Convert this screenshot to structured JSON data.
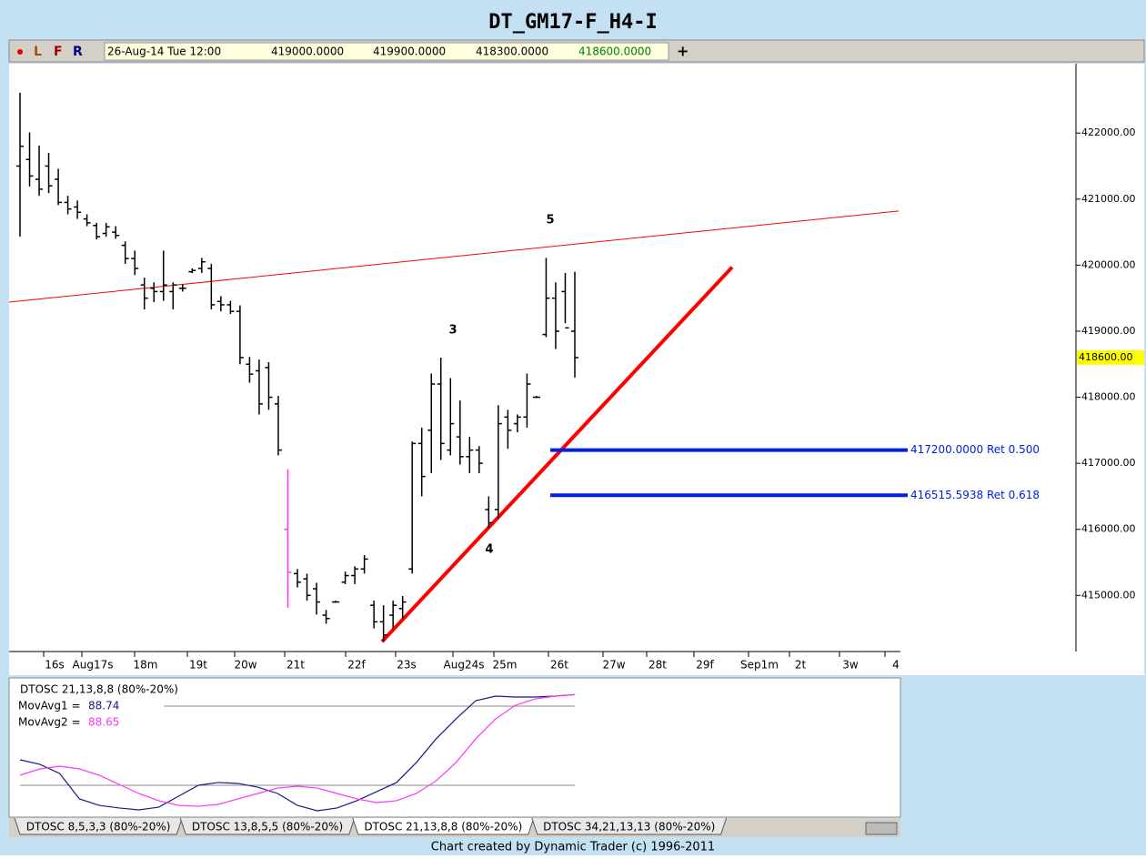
{
  "chart_data": {
    "type": "ohlc",
    "title": "DT_GM17-F_H4-I",
    "toolbar": {
      "flags": [
        "L",
        "F",
        "R"
      ],
      "date": "26-Aug-14 Tue 12:00",
      "open": "419000.0000",
      "high": "419900.0000",
      "low": "418300.0000",
      "close": "418600.0000",
      "plus": "+"
    },
    "categories": [
      "16s",
      "Aug17s",
      "18m",
      "19t",
      "20w",
      "21t",
      "22f",
      "23s",
      "Aug24s",
      "25m",
      "26t",
      "27w",
      "28t",
      "29f",
      "Sep1m",
      "2t",
      "3w",
      "4"
    ],
    "ylim": [
      414150,
      423050
    ],
    "yticks": [
      {
        "value": 415000,
        "label": "415000.00"
      },
      {
        "value": 416000,
        "label": "416000.00"
      },
      {
        "value": 417000,
        "label": "417000.00"
      },
      {
        "value": 418000,
        "label": "418000.00"
      },
      {
        "value": 419000,
        "label": "419000.00"
      },
      {
        "value": 420000,
        "label": "420000.00"
      },
      {
        "value": 421000,
        "label": "421000.00"
      },
      {
        "value": 422000,
        "label": "422000.00"
      }
    ],
    "last_price": {
      "value": 418600,
      "label": "418600.00"
    },
    "color": "#000000",
    "highlight": {
      "index": 28,
      "color": "#ff33ff"
    },
    "high": [
      422610,
      422010,
      421810,
      421700,
      421460,
      421050,
      420980,
      420770,
      420640,
      420640,
      420590,
      420360,
      420220,
      419810,
      419740,
      420220,
      419740,
      419710,
      419950,
      420110,
      420020,
      419530,
      419460,
      419390,
      418610,
      418570,
      418530,
      418020,
      416910,
      415400,
      415330,
      415190,
      414780,
      414920,
      415360,
      415440,
      415610,
      414920,
      414850,
      414920,
      414990,
      417330,
      417540,
      418360,
      418600,
      418290,
      417950,
      417400,
      417260,
      416500,
      417880,
      417810,
      417740,
      418360,
      418020,
      420110,
      419740,
      419880,
      419900
    ],
    "low": [
      420430,
      421190,
      421050,
      421090,
      420910,
      420770,
      420700,
      420590,
      420390,
      420430,
      420400,
      420020,
      419850,
      419330,
      419440,
      419460,
      419330,
      419600,
      419880,
      419880,
      419330,
      419300,
      419260,
      418500,
      418220,
      417740,
      417810,
      417120,
      414810,
      415120,
      414920,
      414710,
      414570,
      414890,
      415170,
      415170,
      415330,
      414500,
      414300,
      414500,
      414640,
      415330,
      416500,
      416850,
      417050,
      417120,
      416980,
      416850,
      416850,
      416020,
      416160,
      417220,
      417470,
      417540,
      417990,
      418910,
      418730,
      419120,
      418300
    ],
    "open": [
      421500,
      421600,
      421300,
      421500,
      421300,
      420950,
      420880,
      420700,
      420600,
      420480,
      420500,
      420300,
      420100,
      419700,
      419650,
      419600,
      419600,
      419650,
      419900,
      419950,
      419950,
      419450,
      419400,
      419300,
      418500,
      418400,
      418450,
      417900,
      416000,
      415330,
      415250,
      415100,
      414700,
      414900,
      415200,
      415300,
      415400,
      414850,
      414600,
      414700,
      414800,
      415400,
      417300,
      417500,
      418200,
      417200,
      417400,
      417100,
      417200,
      416300,
      416300,
      417700,
      417600,
      417700,
      418000,
      418950,
      419500,
      419600,
      419000
    ],
    "close": [
      421800,
      421350,
      421150,
      421200,
      420950,
      420850,
      420800,
      420640,
      420430,
      420580,
      420450,
      420100,
      419950,
      419500,
      419600,
      419700,
      419700,
      419650,
      419920,
      420050,
      419400,
      419400,
      419300,
      418600,
      418350,
      417900,
      418000,
      417200,
      415350,
      415200,
      415000,
      414900,
      414650,
      414900,
      415300,
      415400,
      415550,
      414600,
      414400,
      414850,
      414900,
      417300,
      416800,
      418200,
      417300,
      417600,
      417100,
      417200,
      417000,
      416100,
      417600,
      417500,
      417700,
      418200,
      418000,
      419500,
      419000,
      419050,
      418600
    ],
    "trend_lines": [
      {
        "from": 419440,
        "to": 420820,
        "color": "#ff0000",
        "width": 1
      },
      {
        "from": 414300,
        "to": 419970,
        "color": "#ff0000",
        "width": 4
      }
    ],
    "retracements": [
      {
        "value": 417200,
        "label": "417200.0000 Ret 0.500"
      },
      {
        "value": 416515.5938,
        "label": "416515.5938 Ret 0.618"
      }
    ],
    "retracement_color": "#0022dd",
    "wave_labels": [
      {
        "label": "3",
        "value": 419010
      },
      {
        "label": "4",
        "value": 415690
      },
      {
        "label": "5",
        "value": 420680
      }
    ],
    "oscillator": {
      "title": "DTOSC 21,13,8,8 (80%-20%)",
      "ylim": [
        0,
        100
      ],
      "levels": [
        80,
        20
      ],
      "series": [
        {
          "name": "MovAvg1 =",
          "color": "#1a1a80",
          "last": 88.74,
          "values": [
            39.3,
            35.9,
            29.0,
            9.7,
            4.8,
            2.8,
            1.4,
            3.4,
            11.7,
            20.0,
            22.1,
            21.4,
            18.6,
            13.8,
            4.8,
            0.7,
            2.8,
            8.3,
            15.2,
            22.1,
            37.2,
            55.2,
            70.3,
            84.1,
            87.6,
            86.9,
            86.9,
            87.6,
            88.74
          ]
        },
        {
          "name": "MovAvg2 =",
          "color": "#ff33ff",
          "last": 88.65,
          "values": [
            27.6,
            32.4,
            34.5,
            32.4,
            27.6,
            20.7,
            13.8,
            8.3,
            4.8,
            4.1,
            5.5,
            9.7,
            13.8,
            17.9,
            19.3,
            17.9,
            13.8,
            9.7,
            6.9,
            8.3,
            13.8,
            23.4,
            37.2,
            55.2,
            70.3,
            80.7,
            85.5,
            87.6,
            88.65
          ]
        }
      ]
    },
    "tabs": [
      "DTOSC 8,5,3,3 (80%-20%)",
      "DTOSC 13,8,5,5 (80%-20%)",
      "DTOSC 21,13,8,8 (80%-20%)",
      "DTOSC 34,21,13,13 (80%-20%)"
    ],
    "active_tab": 2,
    "footer": "Chart created by Dynamic Trader  (c) 1996-2011"
  }
}
